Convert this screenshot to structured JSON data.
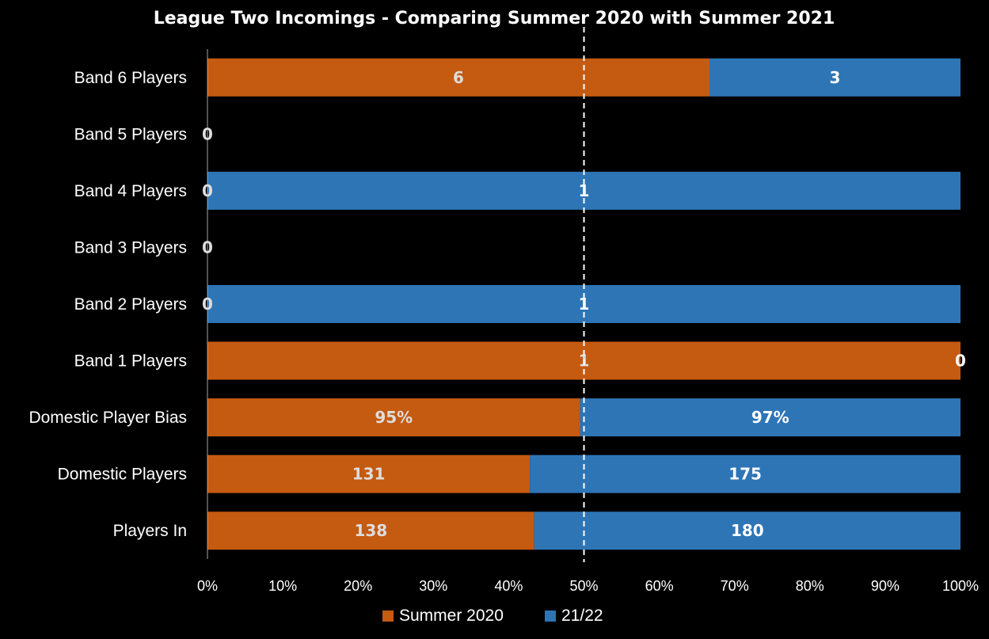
{
  "chart_data": {
    "type": "bar",
    "orientation": "horizontal",
    "stacked": "percent",
    "title": "League Two Incomings - Comparing Summer 2020 with Summer 2021",
    "categories": [
      "Band 6 Players",
      "Band 5 Players",
      "Band 4 Players",
      "Band 3 Players",
      "Band 2 Players",
      "Band 1 Players",
      "Domestic Player Bias",
      "Domestic Players",
      "Players In"
    ],
    "series": [
      {
        "name": "Summer 2020",
        "color": "#c55a11",
        "label_color": "#dddddd",
        "values": [
          6,
          0,
          0,
          0,
          0,
          1,
          95,
          131,
          138
        ],
        "labels": [
          "6",
          "0",
          "0",
          "0",
          "0",
          "1",
          "95%",
          "131",
          "138"
        ]
      },
      {
        "name": "21/22",
        "color": "#2e75b6",
        "label_color": "#ffffff",
        "values": [
          3,
          0,
          1,
          0,
          1,
          0,
          97,
          175,
          180
        ],
        "labels": [
          "3",
          "",
          "1",
          "",
          "1",
          "0",
          "97%",
          "175",
          "180"
        ]
      }
    ],
    "xlim": [
      0,
      100
    ],
    "xticks": [
      "0%",
      "10%",
      "20%",
      "30%",
      "40%",
      "50%",
      "60%",
      "70%",
      "80%",
      "90%",
      "100%"
    ],
    "reference_line": {
      "value": 50,
      "style": "dashed",
      "color": "#ffffff"
    },
    "legend": "bottom",
    "background": "#000000"
  }
}
